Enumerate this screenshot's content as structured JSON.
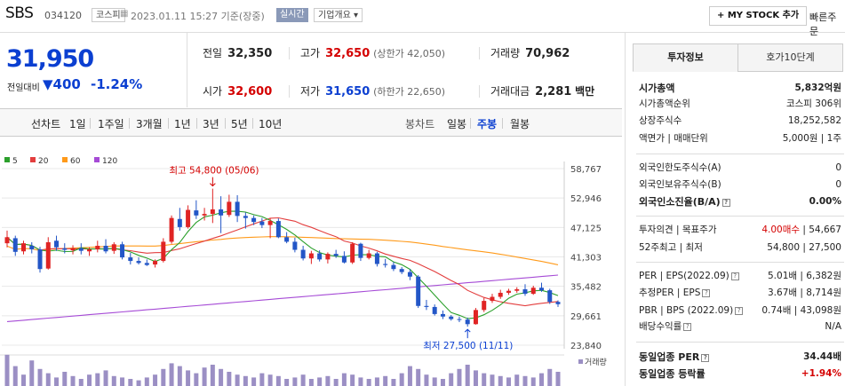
{
  "header": {
    "name": "SBS",
    "code": "034120",
    "market": "코스피",
    "datetime": "2023.01.11 15:27 기준(장중)",
    "realtime": "실시간",
    "company_info": "기업개요",
    "mystock": "+ MY STOCK 추가",
    "quick_order": "빠른주문"
  },
  "price": {
    "current": "31,950",
    "change_label": "전일대비",
    "change": "400",
    "change_rate": "-1.24%"
  },
  "summary": {
    "prev_close": {
      "label": "전일",
      "value": "32,350"
    },
    "high": {
      "label": "고가",
      "value": "32,650",
      "sub": "(상한가 42,050)"
    },
    "volume": {
      "label": "거래량",
      "value": "70,962"
    },
    "open": {
      "label": "시가",
      "value": "32,600"
    },
    "low": {
      "label": "저가",
      "value": "31,650",
      "sub": "(하한가 22,650)"
    },
    "amount": {
      "label": "거래대금",
      "value": "2,281",
      "unit": "백만"
    }
  },
  "tabs": {
    "line": "선차트",
    "d1": "1일",
    "w1": "1주일",
    "m3": "3개월",
    "y1": "1년",
    "y3": "3년",
    "y5": "5년",
    "y10": "10년",
    "candle": "봉차트",
    "daily": "일봉",
    "weekly": "주봉",
    "monthly": "월봉"
  },
  "chart_data": {
    "type": "candlestick",
    "legend": [
      "5",
      "20",
      "60",
      "120"
    ],
    "legend_colors": [
      "#2ca02c",
      "#e33e3e",
      "#ff9a1a",
      "#a64bd6"
    ],
    "y_ticks": [
      "58,767",
      "52,946",
      "47,125",
      "41,303",
      "35,482",
      "29,661",
      "23,840"
    ],
    "y_range": [
      23840,
      58767
    ],
    "high_label": "최고 54,800 (05/06)",
    "low_label": "최저 27,500 (11/11)",
    "volume_label": "거래량",
    "candles": [
      [
        44000,
        46500,
        43200,
        45200
      ],
      [
        45000,
        45500,
        41500,
        42300
      ],
      [
        42400,
        44500,
        41800,
        44000
      ],
      [
        43500,
        44200,
        42000,
        42800
      ],
      [
        42800,
        43300,
        38200,
        38900
      ],
      [
        39000,
        45200,
        38800,
        44200
      ],
      [
        44500,
        45500,
        42500,
        43200
      ],
      [
        43000,
        44000,
        42000,
        42700
      ],
      [
        42600,
        43600,
        41800,
        43000
      ],
      [
        43000,
        44000,
        41800,
        42500
      ],
      [
        42400,
        43200,
        41500,
        42800
      ],
      [
        42800,
        44500,
        42200,
        43500
      ],
      [
        43500,
        44800,
        42000,
        42400
      ],
      [
        42500,
        44200,
        41900,
        43800
      ],
      [
        43800,
        44300,
        40800,
        41200
      ],
      [
        41200,
        42100,
        39800,
        40500
      ],
      [
        40500,
        41200,
        39800,
        40100
      ],
      [
        40100,
        40800,
        39500,
        39700
      ],
      [
        39800,
        40800,
        39200,
        40500
      ],
      [
        40500,
        45000,
        40200,
        44300
      ],
      [
        44300,
        49500,
        43900,
        49000
      ],
      [
        48800,
        51000,
        46500,
        47200
      ],
      [
        47200,
        51500,
        46900,
        50600
      ],
      [
        50500,
        52500,
        48800,
        49500
      ],
      [
        49500,
        51000,
        48500,
        49800
      ],
      [
        49800,
        54800,
        48000,
        50700
      ],
      [
        50700,
        53300,
        46000,
        49500
      ],
      [
        49600,
        53600,
        49200,
        52200
      ],
      [
        52200,
        53500,
        48200,
        49400
      ],
      [
        49400,
        50100,
        46900,
        49000
      ],
      [
        49000,
        49500,
        47600,
        48200
      ],
      [
        48300,
        49000,
        47000,
        47600
      ],
      [
        47600,
        48900,
        45000,
        48400
      ],
      [
        48400,
        48900,
        45000,
        45200
      ],
      [
        45200,
        46200,
        44000,
        44300
      ],
      [
        44300,
        45100,
        42200,
        42700
      ],
      [
        42700,
        43500,
        40600,
        41000
      ],
      [
        41000,
        42500,
        39900,
        42000
      ],
      [
        42000,
        42600,
        40400,
        40800
      ],
      [
        40800,
        42200,
        40000,
        41900
      ],
      [
        41900,
        42700,
        41100,
        41500
      ],
      [
        41500,
        42400,
        40000,
        40200
      ],
      [
        40200,
        44200,
        39900,
        43900
      ],
      [
        43900,
        44100,
        40500,
        41100
      ],
      [
        41100,
        42700,
        40800,
        42000
      ],
      [
        42000,
        42300,
        39400,
        39900
      ],
      [
        39900,
        40900,
        39200,
        39700
      ],
      [
        39700,
        40300,
        38500,
        38900
      ],
      [
        38900,
        39300,
        37900,
        38300
      ],
      [
        38300,
        38900,
        36700,
        37400
      ],
      [
        37400,
        37700,
        31200,
        31600
      ],
      [
        31600,
        32800,
        30800,
        31400
      ],
      [
        31400,
        31900,
        29700,
        30000
      ],
      [
        30000,
        30700,
        29000,
        29500
      ],
      [
        29500,
        29800,
        28700,
        29000
      ],
      [
        29000,
        29500,
        28400,
        28900
      ],
      [
        28900,
        29300,
        27500,
        28000
      ],
      [
        28000,
        31200,
        27900,
        30800
      ],
      [
        30800,
        33200,
        30400,
        32600
      ],
      [
        32600,
        34000,
        32200,
        33400
      ],
      [
        33400,
        34800,
        33000,
        34200
      ],
      [
        34200,
        35000,
        33800,
        34600
      ],
      [
        34600,
        35300,
        34200,
        34900
      ],
      [
        34900,
        35900,
        33600,
        34000
      ],
      [
        34000,
        35600,
        33800,
        35200
      ],
      [
        35200,
        36200,
        34400,
        34700
      ],
      [
        34700,
        35000,
        32000,
        32400
      ],
      [
        32400,
        32700,
        31400,
        31950
      ]
    ]
  },
  "info_tabs": {
    "invest": "투자정보",
    "quote10": "호가10단계"
  },
  "info": {
    "mktcap": {
      "k": "시가총액",
      "v": "5,832억원"
    },
    "mktcap_rank": {
      "k": "시가총액순위",
      "v": "코스피 306위"
    },
    "shares": {
      "k": "상장주식수",
      "v": "18,252,582"
    },
    "par": {
      "k": "액면가 | 매매단위",
      "v": "5,000원 | 1주"
    },
    "foreign_limit": {
      "k": "외국인한도주식수(A)",
      "v": "0"
    },
    "foreign_hold": {
      "k": "외국인보유주식수(B)",
      "v": "0"
    },
    "foreign_rate": {
      "k": "외국인소진율(B/A)",
      "v": "0.00%"
    },
    "opinion": {
      "k": "투자의견 | 목표주가",
      "v1": "4.00매수",
      "v2": "54,667"
    },
    "w52": {
      "k": "52주최고 | 최저",
      "v1": "54,800",
      "v2": "27,500"
    },
    "per": {
      "k": "PER | EPS(2022.09)",
      "v1": "5.01배",
      "v2": "6,382원"
    },
    "est_per": {
      "k": "추정PER | EPS",
      "v1": "3.67배",
      "v2": "8,714원"
    },
    "pbr": {
      "k": "PBR | BPS (2022.09)",
      "v1": "0.74배",
      "v2": "43,098원"
    },
    "dividend": {
      "k": "배당수익률",
      "v": "N/A"
    },
    "ind_per": {
      "k": "동일업종 PER",
      "v": "34.44배"
    },
    "ind_rate": {
      "k": "동일업종 등락률",
      "v": "+1.94%"
    }
  }
}
